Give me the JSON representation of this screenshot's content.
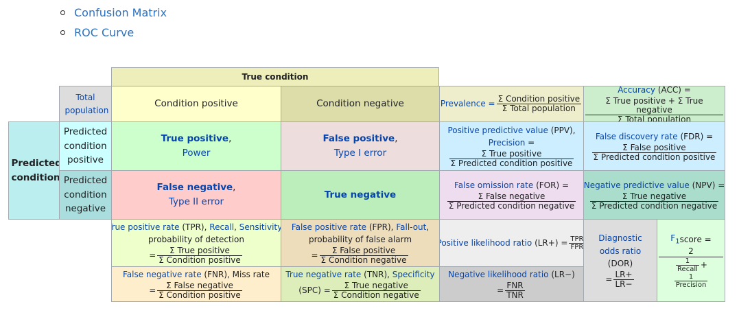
{
  "links": [
    "Confusion Matrix",
    "ROC Curve"
  ],
  "table": {
    "true_condition": "True condition",
    "total_population": "Total population",
    "condition_positive": "Condition positive",
    "condition_negative": "Condition negative",
    "predicted_condition": "Predicted condition",
    "predicted_condition_positive": "Predicted condition positive",
    "predicted_condition_negative": "Predicted condition negative",
    "tp": {
      "title": "True positive",
      "sub": "Power"
    },
    "fp": {
      "title": "False positive",
      "sub": "Type I error"
    },
    "fn": {
      "title": "False negative",
      "sub": "Type II error"
    },
    "tn": {
      "title": "True negative"
    },
    "prevalence": {
      "label": "Prevalence =",
      "num": "Σ Condition positive",
      "den": "Σ Total population"
    },
    "accuracy": {
      "label": "Accuracy",
      "abbr": "(ACC) =",
      "num": "Σ True positive + Σ True negative",
      "den": "Σ Total population"
    },
    "ppv": {
      "label": "Positive predictive value",
      "abbr": "(PPV),",
      "alt": "Precision",
      "eq": "=",
      "num": "Σ True positive",
      "den": "Σ Predicted condition positive"
    },
    "fdr": {
      "label": "False discovery rate",
      "abbr": "(FDR) =",
      "num": "Σ False positive",
      "den": "Σ Predicted condition positive"
    },
    "for": {
      "label": "False omission rate",
      "abbr": "(FOR) =",
      "num": "Σ False negative",
      "den": "Σ Predicted condition negative"
    },
    "npv": {
      "label": "Negative predictive value",
      "abbr": "(NPV) =",
      "num": "Σ True negative",
      "den": "Σ Predicted condition negative"
    },
    "tpr": {
      "label": "True positive rate",
      "abbr": "(TPR),",
      "recall": "Recall",
      "sens": "Sensitivity",
      "line2": "probability of detection",
      "eq": "=",
      "num": "Σ True positive",
      "den": "Σ Condition positive"
    },
    "fpr": {
      "label": "False positive rate",
      "abbr": "(FPR),",
      "fallout": "Fall-out",
      "line2": "probability of false alarm",
      "eq": "=",
      "num": "Σ False positive",
      "den": "Σ Condition negative"
    },
    "fnr": {
      "label": "False negative rate",
      "abbr": "(FNR), Miss rate",
      "eq": "=",
      "num": "Σ False negative",
      "den": "Σ Condition positive"
    },
    "tnr": {
      "label": "True negative rate",
      "abbr": "(TNR),",
      "spec": "Specificity",
      "pre": "(SPC) =",
      "num": "Σ True negative",
      "den": "Σ Condition negative"
    },
    "lrp": {
      "label": "Positive likelihood ratio",
      "abbr": "(LR+) =",
      "num": "TPR",
      "den": "FPR"
    },
    "lrn": {
      "label": "Negative likelihood ratio",
      "abbr": "(LR−)",
      "eq": "=",
      "num": "FNR",
      "den": "TNR"
    },
    "dor": {
      "label": "Diagnostic odds ratio",
      "abbr": "(DOR)",
      "eq": "=",
      "num": "LR+",
      "den": "LR−"
    },
    "f1": {
      "label": "F",
      "sub": "1",
      "suffix": " score =",
      "num": "2",
      "d1": "Recall",
      "d2": "Precision",
      "one": "1",
      "plus": "+"
    }
  },
  "colors": {
    "link": "#2a72c3",
    "blue_text": "#0645ad",
    "true_condition": "#eeeebb",
    "total": "#dddddd",
    "cond_pos": "#ffffcc",
    "cond_neg": "#ddddaa",
    "predicted": "#bbeeee",
    "pred_pos": "#ccffff",
    "pred_neg": "#aadddd",
    "tp": "#ccffcc",
    "fp": "#eedddd",
    "fn": "#ffcccc",
    "tn": "#bbeebb",
    "prevalence": "#eeeecc",
    "accuracy": "#cceecc",
    "ppv": "#cceeff",
    "fdr": "#cceeff",
    "for": "#eeddee",
    "npv": "#aaddcc",
    "tpr": "#eeffcc",
    "fpr": "#eeddbb",
    "fnr": "#ffeecc",
    "tnr": "#ddeebb",
    "lrp": "#eeeeee",
    "lrn": "#cccccc",
    "dor": "#dddddd",
    "f1": "#ddffdd"
  }
}
